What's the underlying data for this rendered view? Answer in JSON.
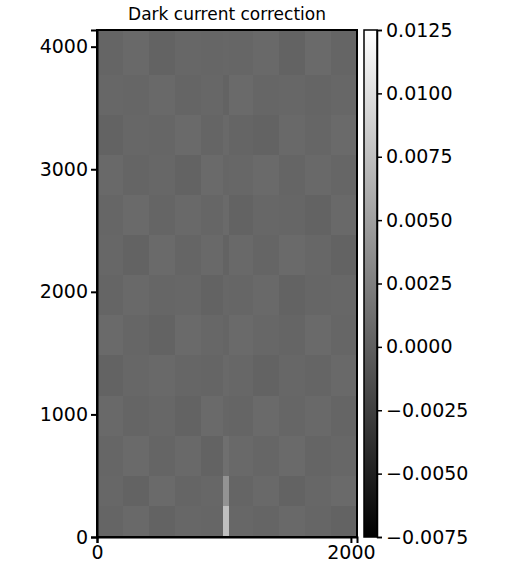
{
  "chart_data": {
    "type": "heatmap",
    "title": "Dark current correction",
    "x_edges": [
      0,
      205,
      410,
      614,
      819,
      990,
      1040,
      1229,
      1434,
      1638,
      1843,
      2048
    ],
    "y_edges": [
      0,
      250,
      500,
      827,
      1154,
      1481,
      1808,
      2135,
      2462,
      2789,
      3116,
      3443,
      3770,
      4136
    ],
    "z": [
      [
        0.0004,
        0.0007,
        0.0003,
        0.0006,
        0.0005,
        0.0075,
        0.0006,
        0.0004,
        0.0007,
        0.0005,
        0.0003
      ],
      [
        0.0006,
        0.0003,
        0.0008,
        0.0004,
        0.0006,
        0.004,
        0.0004,
        0.0007,
        0.0003,
        0.0006,
        0.0008
      ],
      [
        0.0005,
        0.0008,
        0.0004,
        0.0007,
        0.0003,
        0.0012,
        0.0007,
        0.0005,
        0.0008,
        0.0004,
        0.0006
      ],
      [
        0.0007,
        0.0004,
        0.0006,
        0.0003,
        0.0008,
        0.0005,
        0.0004,
        0.0008,
        0.0005,
        0.0007,
        0.0004
      ],
      [
        0.0003,
        0.0006,
        0.0007,
        0.0005,
        0.0004,
        0.0007,
        0.0006,
        0.0003,
        0.0006,
        0.0004,
        0.0007
      ],
      [
        0.0008,
        0.0005,
        0.0003,
        0.0008,
        0.0006,
        0.0004,
        0.0008,
        0.0006,
        0.0004,
        0.0008,
        0.0005
      ],
      [
        0.0004,
        0.0007,
        0.0005,
        0.0006,
        0.0003,
        0.0006,
        0.0005,
        0.0007,
        0.0003,
        0.0005,
        0.0006
      ],
      [
        0.0006,
        0.0003,
        0.0008,
        0.0004,
        0.0007,
        0.0003,
        0.0007,
        0.0004,
        0.0008,
        0.0006,
        0.0003
      ],
      [
        0.0005,
        0.0008,
        0.0004,
        0.0007,
        0.0005,
        0.0008,
        0.0003,
        0.0006,
        0.0005,
        0.0003,
        0.0007
      ],
      [
        0.0007,
        0.0004,
        0.0006,
        0.0003,
        0.0008,
        0.0005,
        0.0006,
        0.0008,
        0.0004,
        0.0007,
        0.0005
      ],
      [
        0.0003,
        0.0006,
        0.0005,
        0.0008,
        0.0004,
        0.0007,
        0.0004,
        0.0003,
        0.0007,
        0.0005,
        0.0008
      ],
      [
        0.0006,
        0.0005,
        0.0007,
        0.0004,
        0.0006,
        0.0003,
        0.0008,
        0.0005,
        0.0006,
        0.0004,
        0.0006
      ],
      [
        0.0004,
        0.0007,
        0.0003,
        0.0006,
        0.0005,
        0.0006,
        0.0005,
        0.0007,
        0.0003,
        0.0008,
        0.0004
      ]
    ],
    "xlim": [
      0,
      2048
    ],
    "ylim": [
      0,
      4136
    ],
    "xticks": [
      0,
      2000
    ],
    "yticks": [
      0,
      1000,
      2000,
      3000,
      4000
    ],
    "colorbar": {
      "range": [
        -0.0075,
        0.0125
      ],
      "ticks": [
        {
          "value": -0.0075,
          "label": "−0.0075"
        },
        {
          "value": -0.005,
          "label": "−0.0050"
        },
        {
          "value": -0.0025,
          "label": "−0.0025"
        },
        {
          "value": 0,
          "label": "0.0000"
        },
        {
          "value": 0.0025,
          "label": "0.0025"
        },
        {
          "value": 0.005,
          "label": "0.0050"
        },
        {
          "value": 0.0075,
          "label": "0.0075"
        },
        {
          "value": 0.01,
          "label": "0.0100"
        },
        {
          "value": 0.0125,
          "label": "0.0125"
        }
      ]
    }
  }
}
